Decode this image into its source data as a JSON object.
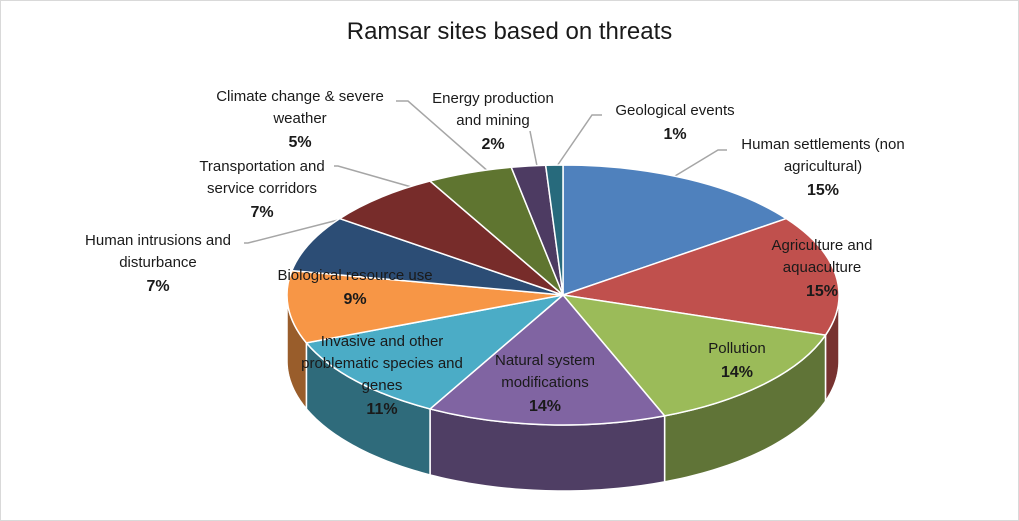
{
  "chart_data": {
    "type": "pie",
    "style": "3d",
    "title": "Ramsar sites based on threats",
    "legend": "none",
    "slices": [
      {
        "label": [
          "Human settlements (non",
          "agricultural)"
        ],
        "pct_label": "15%",
        "value": 15,
        "color": "#4f81bd"
      },
      {
        "label": [
          "Agriculture and",
          "aquaculture"
        ],
        "pct_label": "15%",
        "value": 15,
        "color": "#c0504d"
      },
      {
        "label": [
          "Pollution"
        ],
        "pct_label": "14%",
        "value": 14,
        "color": "#9bbb59"
      },
      {
        "label": [
          "Natural system",
          "modifications"
        ],
        "pct_label": "14%",
        "value": 14,
        "color": "#8064a2"
      },
      {
        "label": [
          "Invasive and other",
          "problematic species and",
          "genes"
        ],
        "pct_label": "11%",
        "value": 11,
        "color": "#4bacc6"
      },
      {
        "label": [
          "Biological resource use"
        ],
        "pct_label": "9%",
        "value": 9,
        "color": "#f79646"
      },
      {
        "label": [
          "Human intrusions and",
          "disturbance"
        ],
        "pct_label": "7%",
        "value": 7,
        "color": "#2c4d75"
      },
      {
        "label": [
          "Transportation and",
          "service corridors"
        ],
        "pct_label": "7%",
        "value": 7,
        "color": "#772c2a"
      },
      {
        "label": [
          "Climate change & severe",
          "weather"
        ],
        "pct_label": "5%",
        "value": 5,
        "color": "#5f7530"
      },
      {
        "label": [
          "Energy production",
          "and mining"
        ],
        "pct_label": "2%",
        "value": 2,
        "color": "#4d3b62"
      },
      {
        "label": [
          "Geological events"
        ],
        "pct_label": "1%",
        "value": 1,
        "color": "#276a7c"
      }
    ]
  }
}
